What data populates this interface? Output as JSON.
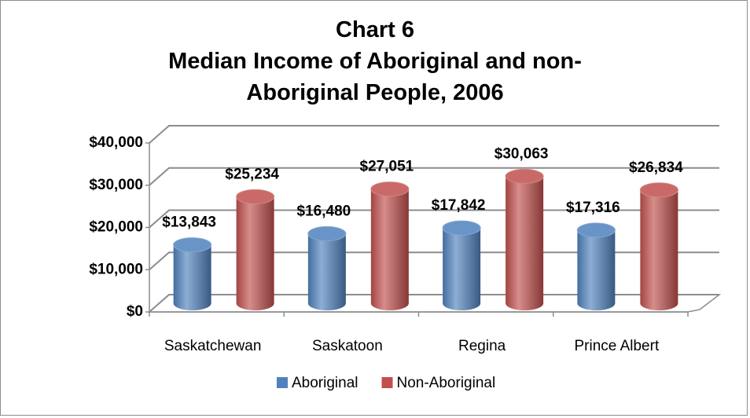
{
  "chart_data": {
    "type": "bar",
    "title": "Chart 6",
    "subtitle": "Median Income of Aboriginal and non-Aboriginal People, 2006",
    "categories": [
      "Saskatchewan",
      "Saskatoon",
      "Regina",
      "Prince Albert"
    ],
    "series": [
      {
        "name": "Aboriginal",
        "color": "#4f81bd",
        "values": [
          13843,
          16480,
          17842,
          17316
        ],
        "value_labels": [
          "$13,843",
          "$16,480",
          "$17,842",
          "$17,316"
        ]
      },
      {
        "name": "Non-Aboriginal",
        "color": "#c0504d",
        "values": [
          25234,
          27051,
          30063,
          26834
        ],
        "value_labels": [
          "$25,234",
          "$27,051",
          "$30,063",
          "$26,834"
        ]
      }
    ],
    "ylim": [
      0,
      40000
    ],
    "yticks": [
      {
        "value": 0,
        "label": "$0"
      },
      {
        "value": 10000,
        "label": "$10,000"
      },
      {
        "value": 20000,
        "label": "$20,000"
      },
      {
        "value": 30000,
        "label": "$30,000"
      },
      {
        "value": 40000,
        "label": "$40,000"
      }
    ],
    "grid": true,
    "legend": "bottom"
  }
}
